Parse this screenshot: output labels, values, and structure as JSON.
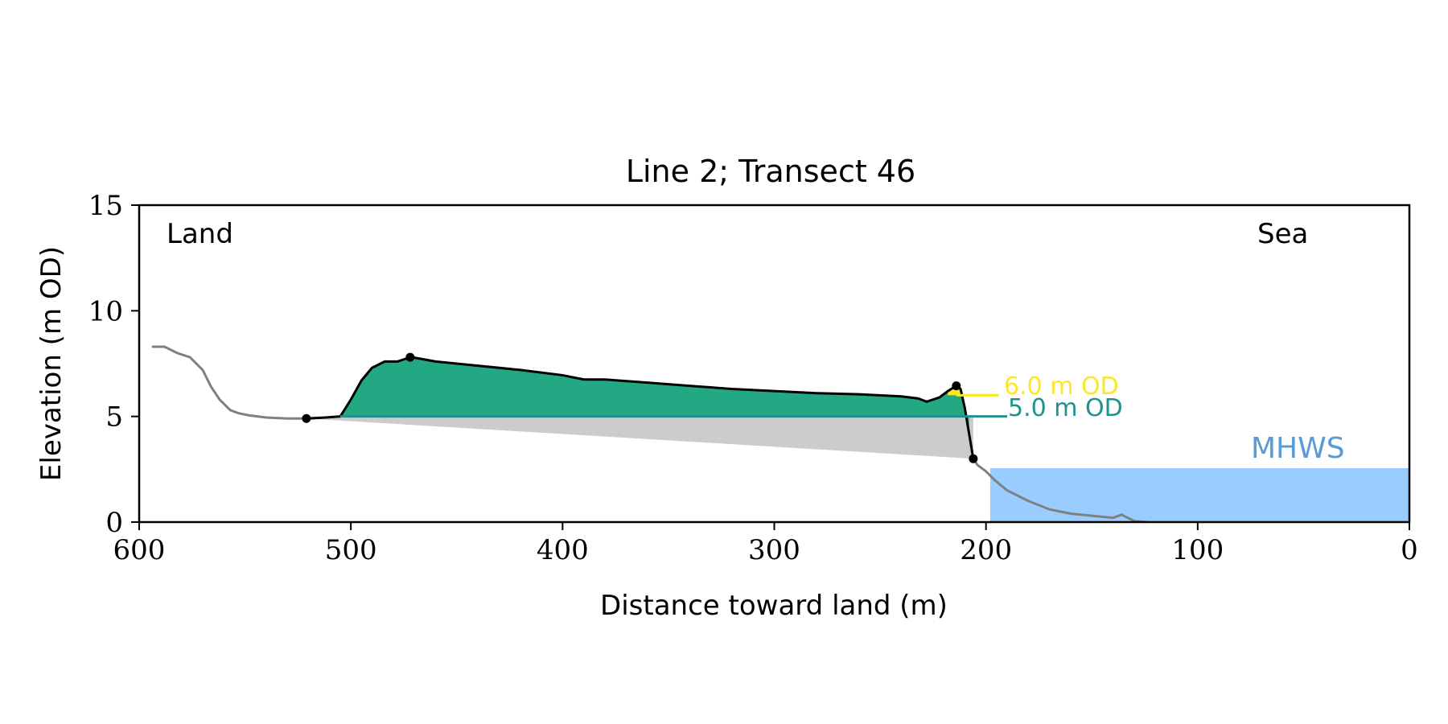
{
  "chart_data": {
    "type": "area",
    "title": "Line 2; Transect 46",
    "xlabel": "Distance toward land (m)",
    "ylabel": "Elevation (m OD)",
    "xlim": [
      600,
      0
    ],
    "ylim": [
      0,
      15
    ],
    "x_ticks": [
      600,
      500,
      400,
      300,
      200,
      100,
      0
    ],
    "y_ticks": [
      0,
      5,
      10,
      15
    ],
    "grid": false,
    "annotations": {
      "land_label": "Land",
      "sea_label": "Sea",
      "mhws_label": "MHWS",
      "level_6_label": "6.0 m OD",
      "level_5_label": "5.0 m OD"
    },
    "colors": {
      "dune_fill": "#23a884",
      "wedge_fill": "#cccccc",
      "sea_fill": "#99ccff",
      "mhws_text": "#5b9bd5",
      "level_6": "#fde725",
      "level_5": "#21918c",
      "profile_outside": "#808080",
      "profile_dune": "#000000"
    },
    "levels": {
      "mhws": 2.55,
      "level_6": 6.0,
      "level_5": 5.0
    },
    "profile": {
      "x": [
        594,
        588,
        582,
        576,
        570,
        566,
        562,
        557,
        553,
        548,
        540,
        530,
        520,
        512,
        505,
        500,
        495,
        490,
        484,
        478,
        472,
        470,
        460,
        440,
        420,
        400,
        390,
        385,
        380,
        360,
        340,
        320,
        300,
        280,
        260,
        240,
        232,
        228,
        222,
        218,
        214,
        212,
        210,
        208,
        206,
        204,
        200,
        196,
        190,
        180,
        170,
        160,
        150,
        140,
        136,
        130,
        124
      ],
      "y": [
        8.3,
        8.3,
        8.0,
        7.8,
        7.2,
        6.4,
        5.8,
        5.3,
        5.15,
        5.05,
        4.95,
        4.9,
        4.9,
        4.95,
        5.0,
        5.8,
        6.7,
        7.3,
        7.6,
        7.6,
        7.8,
        7.78,
        7.6,
        7.4,
        7.2,
        6.95,
        6.75,
        6.75,
        6.75,
        6.6,
        6.45,
        6.3,
        6.2,
        6.1,
        6.05,
        5.95,
        5.85,
        5.7,
        5.9,
        6.2,
        6.45,
        6.3,
        5.4,
        4.2,
        3.0,
        2.7,
        2.4,
        2.0,
        1.5,
        1.0,
        0.6,
        0.4,
        0.3,
        0.2,
        0.35,
        0.05,
        0.0
      ]
    },
    "dune_extent": {
      "landward_toe_x": 505,
      "seaward_x": 206
    },
    "wedge": {
      "x": [
        521,
        206
      ],
      "y": [
        4.9,
        3.0
      ]
    },
    "markers": [
      {
        "x": 521,
        "y": 4.9
      },
      {
        "x": 472,
        "y": 7.8
      },
      {
        "x": 214,
        "y": 6.45
      },
      {
        "x": 206,
        "y": 3.0
      }
    ]
  }
}
